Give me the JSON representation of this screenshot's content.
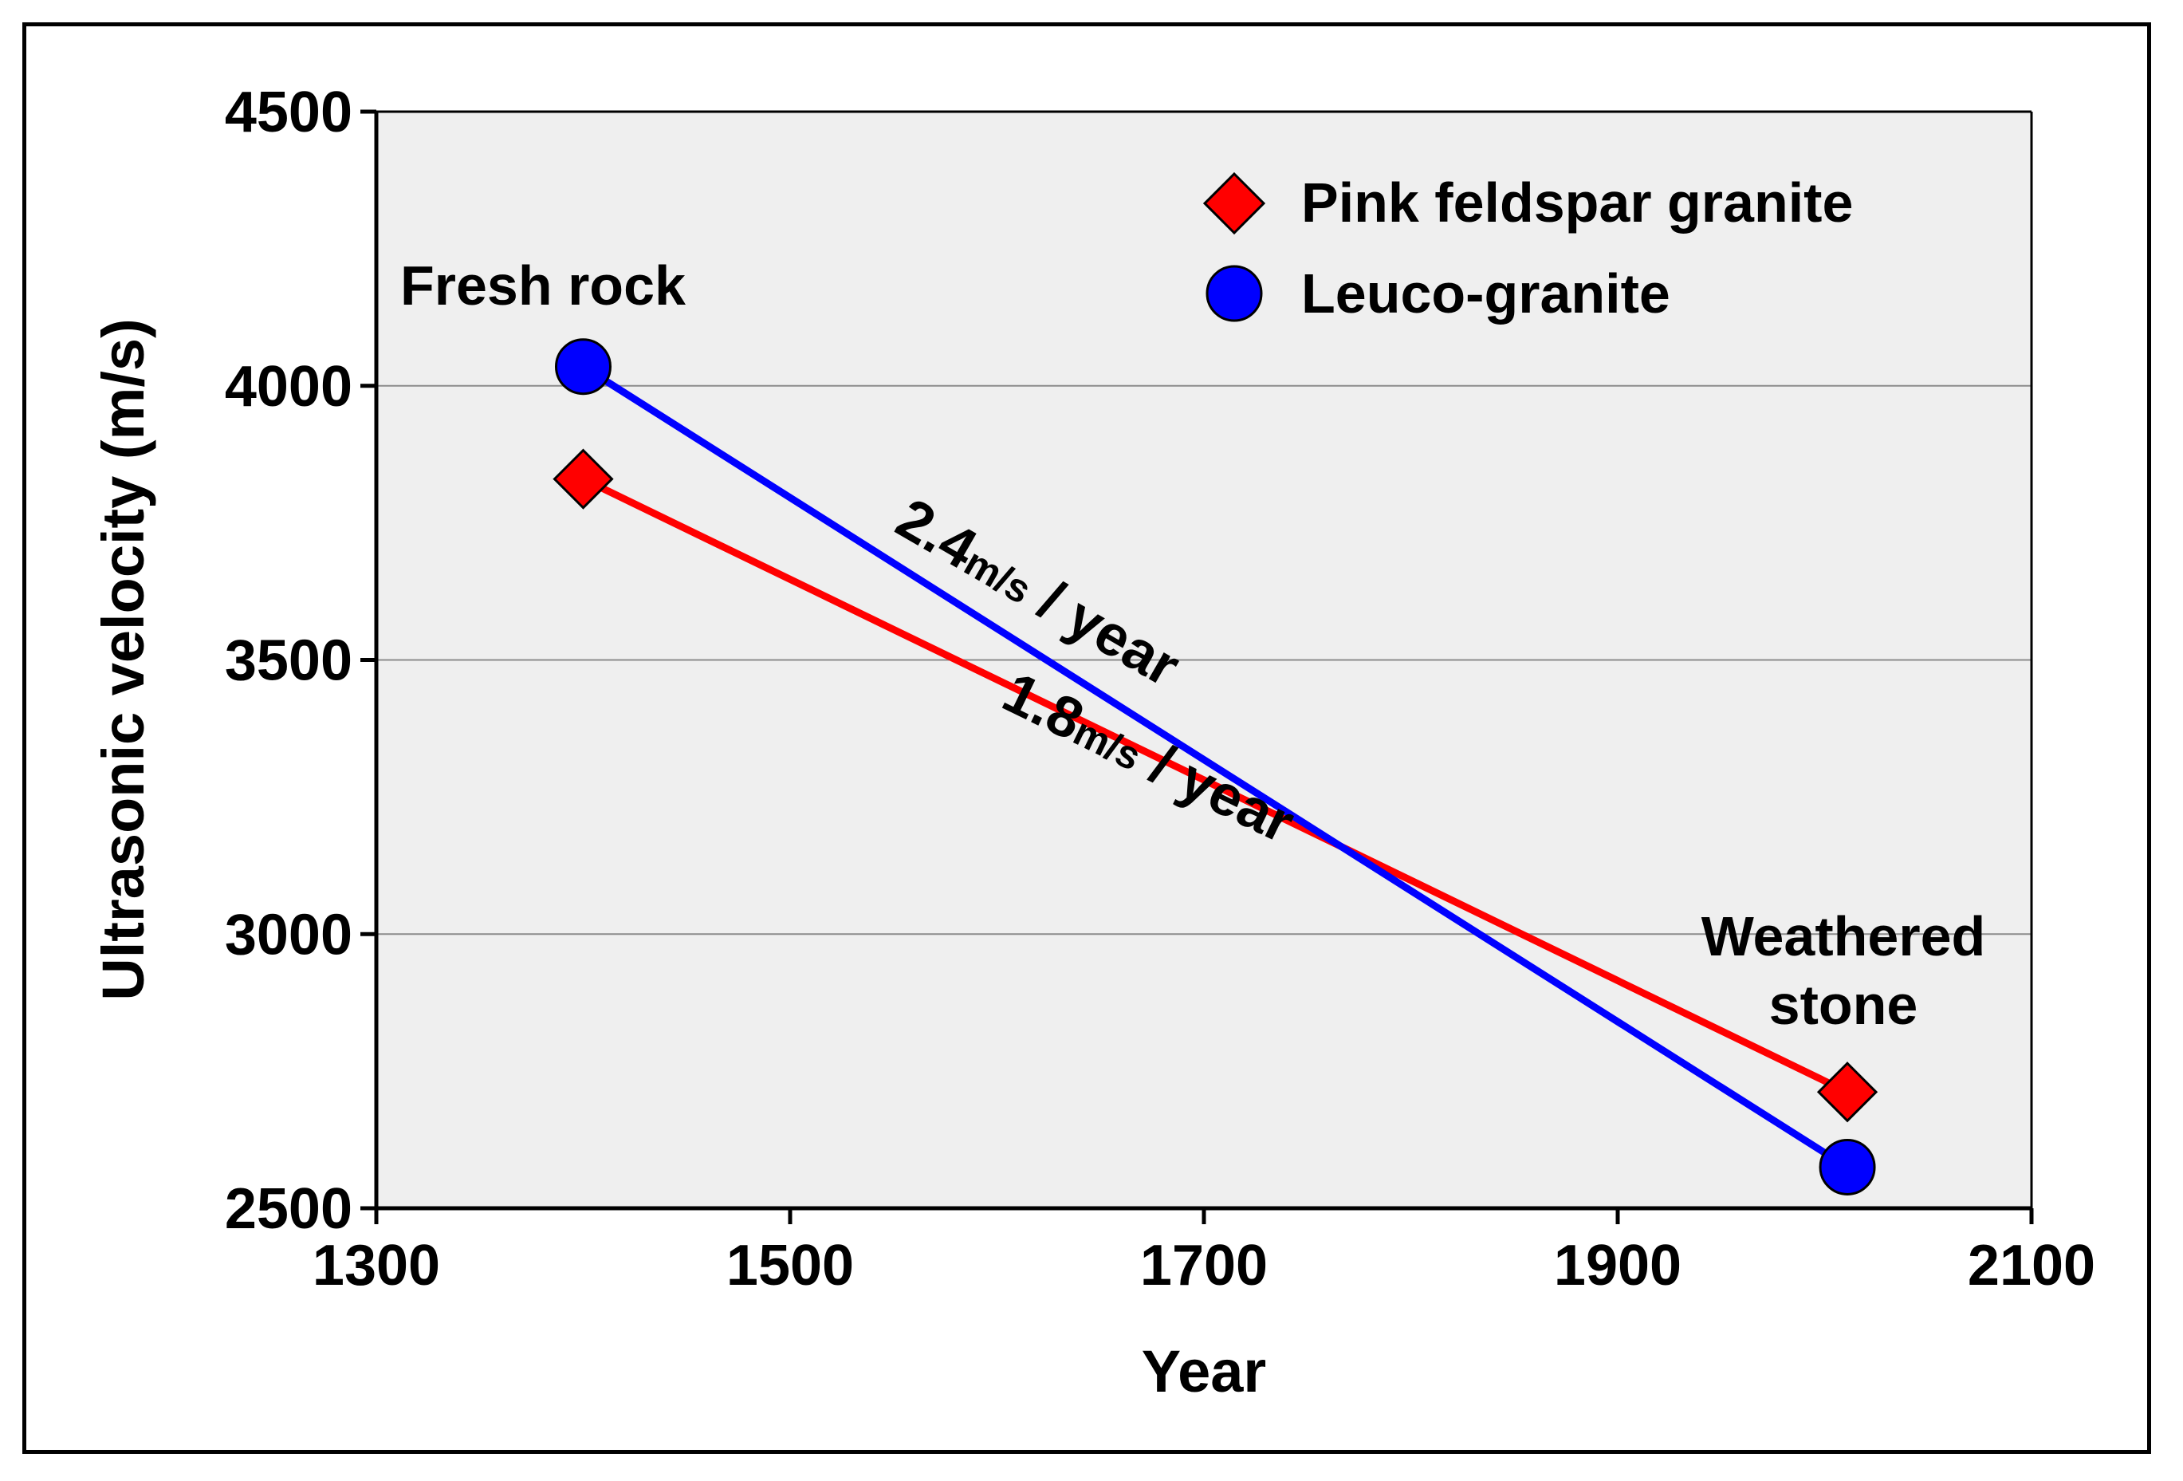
{
  "chart_data": {
    "type": "line",
    "xlabel": "Year",
    "ylabel": "Ultrasonic velocity (m/s)",
    "xlim": [
      1300,
      2100
    ],
    "ylim": [
      2500,
      4500
    ],
    "xticks": [
      1300,
      1500,
      1700,
      1900,
      2100
    ],
    "yticks": [
      2500,
      3000,
      3500,
      4000,
      4500
    ],
    "xtick_labels": [
      "1300",
      "1500",
      "1700",
      "1900",
      "2100"
    ],
    "ytick_labels": [
      "2500",
      "3000",
      "3500",
      "4000",
      "4500"
    ],
    "grid": "horizontal",
    "plot_background": "#efefef",
    "legend_position": "top-right",
    "series": [
      {
        "name": "Pink feldspar granite",
        "marker": "diamond",
        "color": "#ff0000",
        "x": [
          1400,
          2011
        ],
        "y": [
          3830,
          2712
        ]
      },
      {
        "name": "Leuco-granite",
        "marker": "circle",
        "color": "#0000ff",
        "x": [
          1400,
          2011
        ],
        "y": [
          4035,
          2575
        ]
      }
    ],
    "annotations": [
      {
        "id": "fresh",
        "text": "Fresh rock"
      },
      {
        "id": "weathered1",
        "text": "Weathered"
      },
      {
        "id": "weathered2",
        "text": "stone"
      },
      {
        "id": "leuco_rate",
        "number": "2.4",
        "unit": "m/s",
        "suffix": " / year"
      },
      {
        "id": "pink_rate",
        "number": "1.8",
        "unit": "m/s",
        "suffix": " / year"
      }
    ]
  }
}
